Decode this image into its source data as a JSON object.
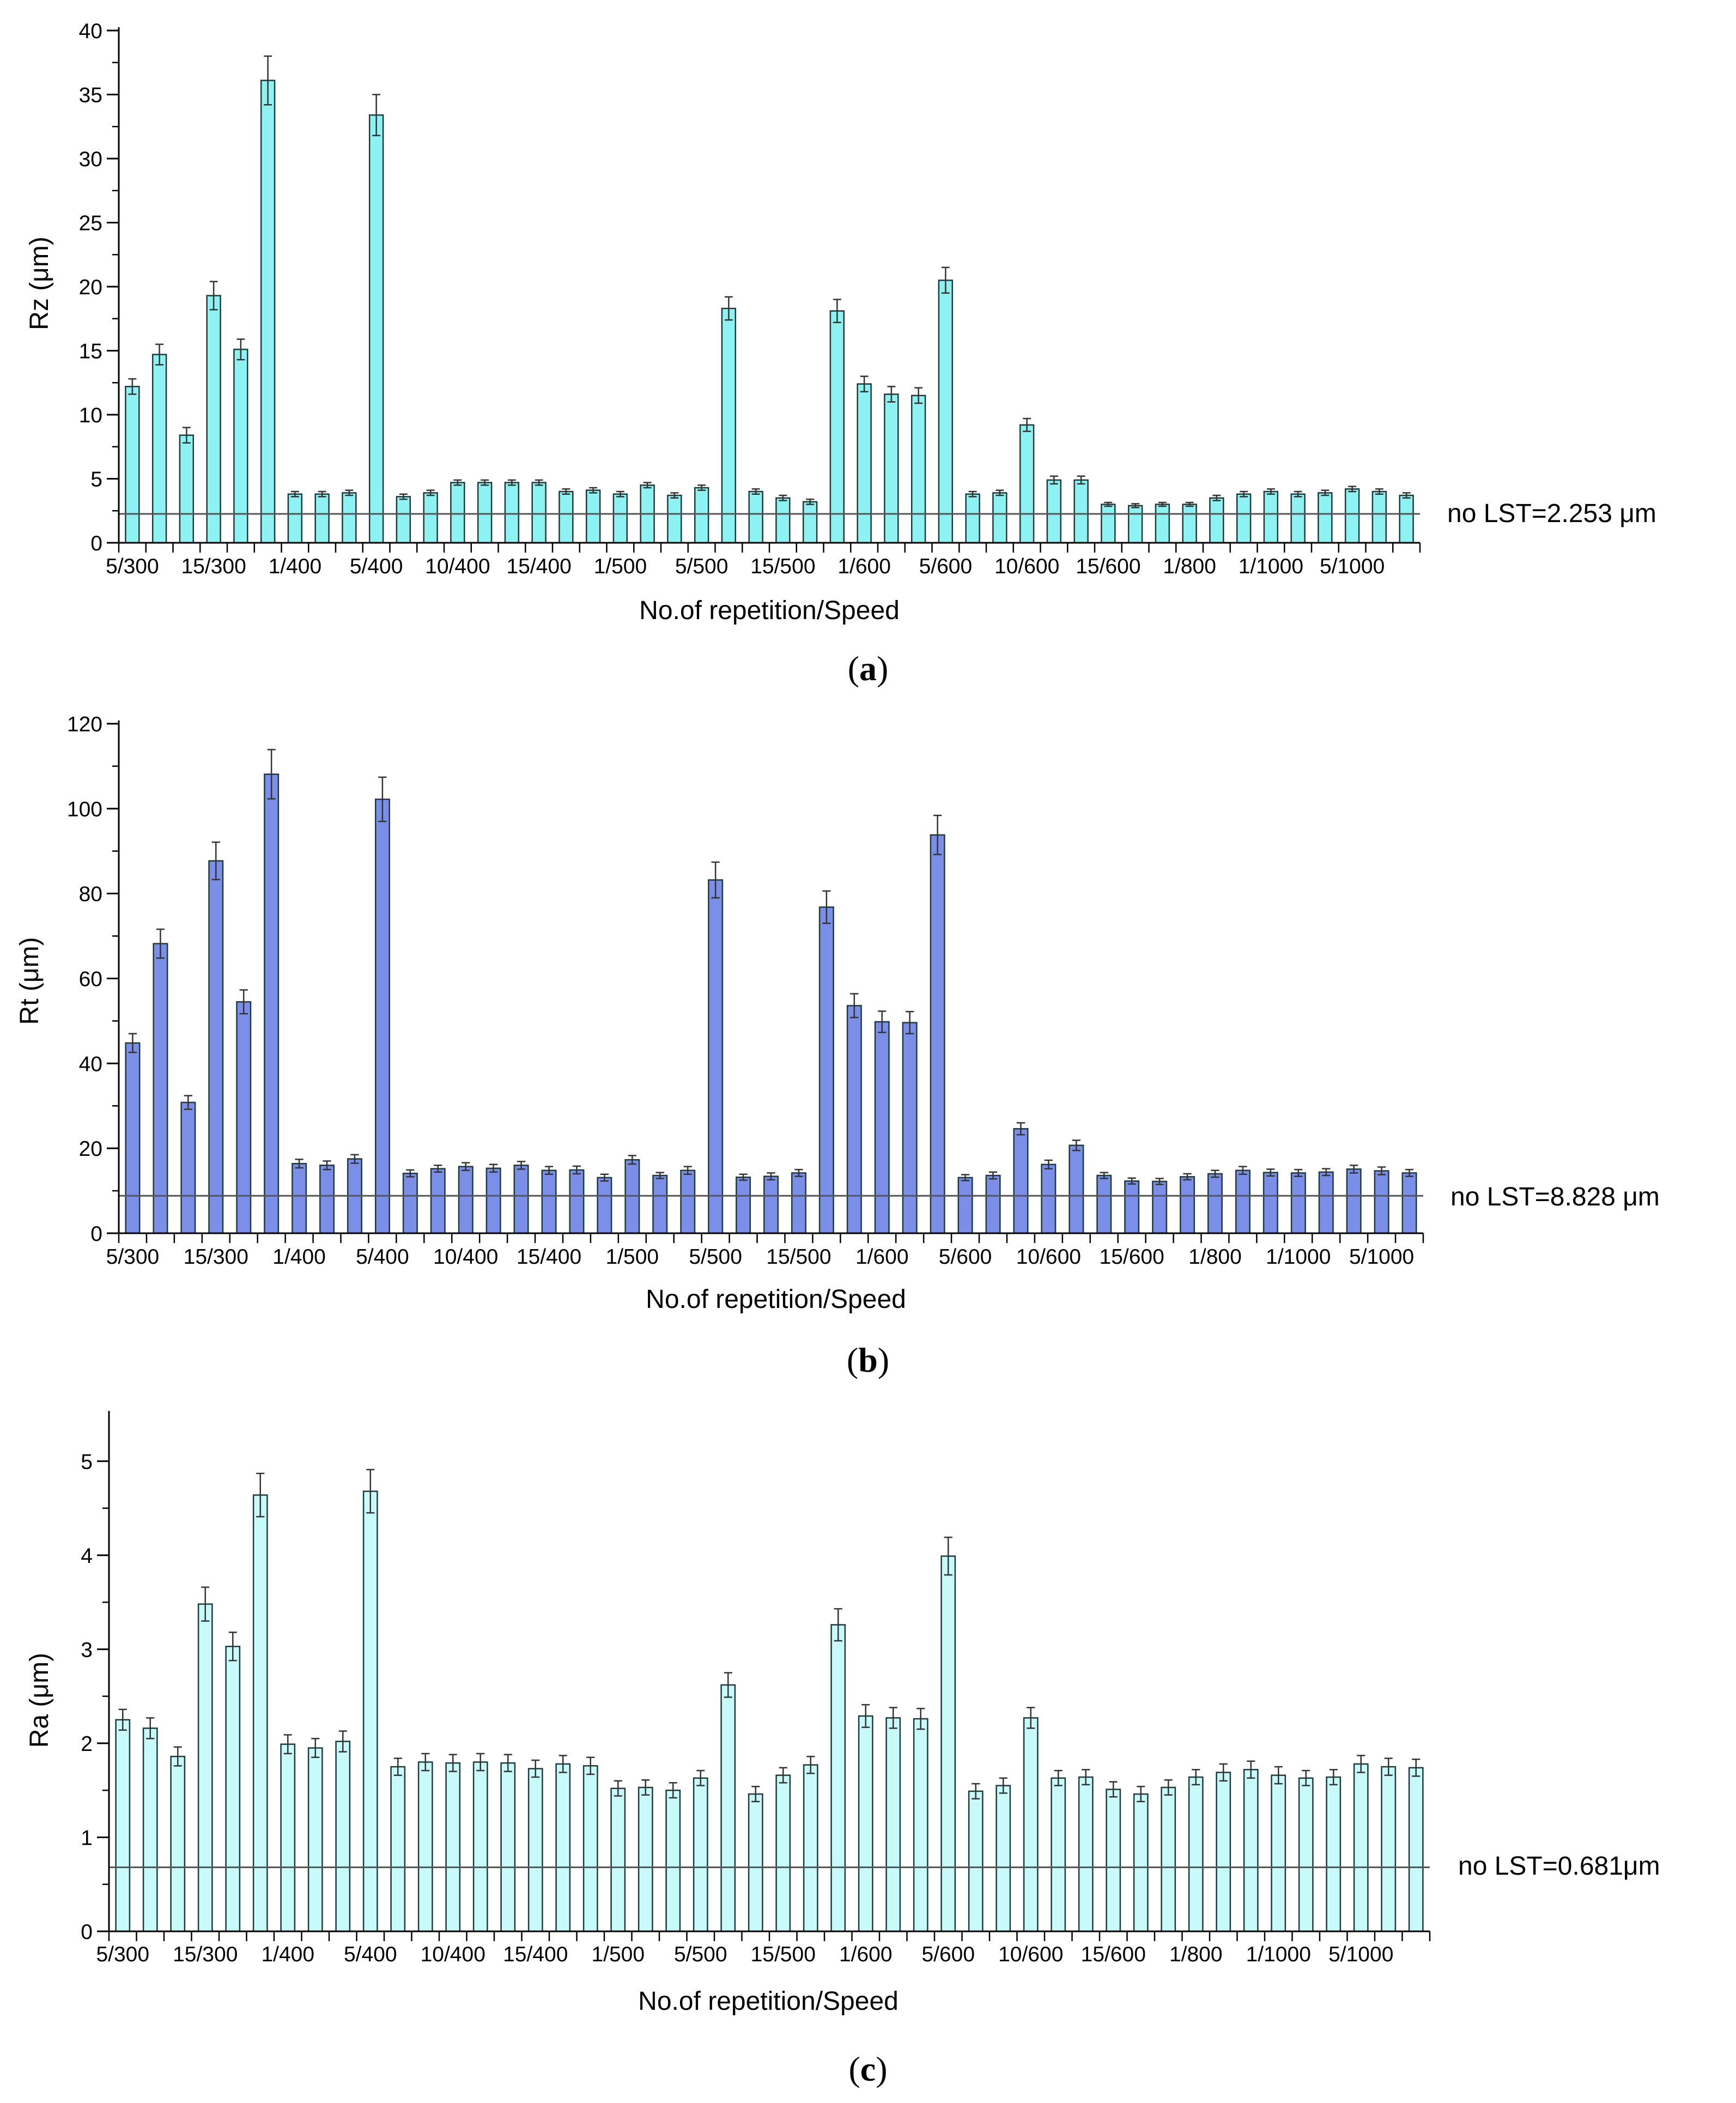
{
  "chart_data": [
    {
      "panel_label": "a",
      "type": "bar",
      "ylabel": "Rz (μm)",
      "xlabel": "No.of repetition/Speed",
      "ylim": [
        0,
        40
      ],
      "yticks": [
        0,
        5,
        10,
        15,
        20,
        25,
        30,
        35,
        40
      ],
      "xtick_labels": [
        "5/300",
        "15/300",
        "1/400",
        "5/400",
        "10/400",
        "15/400",
        "1/500",
        "5/500",
        "15/500",
        "1/600",
        "5/600",
        "10/600",
        "15/600",
        "1/800",
        "1/1000",
        "5/1000"
      ],
      "bar_color": "#8ff2f2",
      "values": [
        12.2,
        14.7,
        8.4,
        19.3,
        15.1,
        36.1,
        3.8,
        3.8,
        3.9,
        33.4,
        3.6,
        3.9,
        4.7,
        4.7,
        4.7,
        4.7,
        4.0,
        4.1,
        3.8,
        4.5,
        3.7,
        4.3,
        18.3,
        4.0,
        3.5,
        3.2,
        18.1,
        12.4,
        11.6,
        11.5,
        20.5,
        3.8,
        3.9,
        9.2,
        4.9,
        4.9,
        3.0,
        2.9,
        3.0,
        3.0,
        3.5,
        3.8,
        4.0,
        3.8,
        3.9,
        4.2,
        4.0,
        3.7
      ],
      "errors": [
        0.6,
        0.8,
        0.6,
        1.1,
        0.8,
        1.9,
        0.2,
        0.2,
        0.2,
        1.6,
        0.2,
        0.2,
        0.2,
        0.2,
        0.2,
        0.2,
        0.2,
        0.2,
        0.2,
        0.2,
        0.2,
        0.2,
        0.9,
        0.2,
        0.2,
        0.2,
        0.9,
        0.6,
        0.6,
        0.6,
        1.0,
        0.2,
        0.2,
        0.5,
        0.3,
        0.3,
        0.15,
        0.15,
        0.15,
        0.15,
        0.2,
        0.2,
        0.2,
        0.2,
        0.2,
        0.2,
        0.2,
        0.2
      ],
      "reference_value": 2.253,
      "reference_label": "no LST=2.253 μm"
    },
    {
      "panel_label": "b",
      "type": "bar",
      "ylabel": "Rt (μm)",
      "xlabel": "No.of repetition/Speed",
      "ylim": [
        0,
        120
      ],
      "yticks": [
        0,
        20,
        40,
        60,
        80,
        100,
        120
      ],
      "xtick_labels": [
        "5/300",
        "15/300",
        "1/400",
        "5/400",
        "10/400",
        "15/400",
        "1/500",
        "5/500",
        "15/500",
        "1/600",
        "5/600",
        "10/600",
        "15/600",
        "1/800",
        "1/1000",
        "5/1000"
      ],
      "bar_color": "#7b8fe8",
      "values": [
        44.8,
        68.2,
        30.8,
        87.7,
        54.5,
        108.1,
        16.4,
        16.0,
        17.5,
        102.2,
        14.1,
        15.2,
        15.7,
        15.3,
        16.0,
        14.8,
        14.9,
        13.1,
        17.3,
        13.6,
        14.8,
        83.2,
        13.2,
        13.4,
        14.2,
        76.8,
        53.6,
        49.8,
        49.6,
        93.8,
        13.1,
        13.6,
        24.6,
        16.2,
        20.7,
        13.6,
        12.3,
        12.2,
        13.3,
        14.0,
        14.8,
        14.3,
        14.2,
        14.4,
        15.1,
        14.7,
        14.2
      ],
      "errors": [
        2.2,
        3.4,
        1.6,
        4.4,
        2.8,
        5.8,
        1.0,
        1.0,
        1.0,
        5.2,
        0.8,
        0.8,
        0.9,
        0.9,
        0.9,
        0.9,
        0.9,
        0.8,
        1.0,
        0.7,
        0.9,
        4.2,
        0.7,
        0.8,
        0.8,
        3.8,
        2.8,
        2.5,
        2.6,
        4.6,
        0.7,
        0.8,
        1.4,
        1.0,
        1.2,
        0.7,
        0.7,
        0.7,
        0.7,
        0.8,
        0.9,
        0.8,
        0.8,
        0.8,
        0.9,
        0.9,
        0.8
      ],
      "reference_value": 8.828,
      "reference_label": "no LST=8.828 μm"
    },
    {
      "panel_label": "c",
      "type": "bar",
      "ylabel": "Ra (μm)",
      "xlabel": "No.of repetition/Speed",
      "ylim": [
        0,
        5.5
      ],
      "yticks": [
        0,
        1,
        2,
        3,
        4,
        5
      ],
      "xtick_labels": [
        "5/300",
        "15/300",
        "1/400",
        "5/400",
        "10/400",
        "15/400",
        "1/500",
        "5/500",
        "15/500",
        "1/600",
        "5/600",
        "10/600",
        "15/600",
        "1/800",
        "1/1000",
        "5/1000"
      ],
      "bar_color": "#c8fafa",
      "values": [
        2.25,
        2.16,
        1.86,
        3.48,
        3.03,
        4.64,
        1.99,
        1.95,
        2.02,
        4.68,
        1.75,
        1.8,
        1.79,
        1.8,
        1.79,
        1.73,
        1.78,
        1.76,
        1.52,
        1.53,
        1.5,
        1.63,
        2.62,
        1.46,
        1.66,
        1.77,
        3.26,
        2.29,
        2.27,
        2.26,
        3.99,
        1.49,
        1.55,
        2.27,
        1.63,
        1.64,
        1.51,
        1.46,
        1.53,
        1.64,
        1.69,
        1.72,
        1.66,
        1.63,
        1.64,
        1.78,
        1.75,
        1.74
      ],
      "errors": [
        0.11,
        0.11,
        0.1,
        0.18,
        0.15,
        0.23,
        0.1,
        0.1,
        0.11,
        0.23,
        0.09,
        0.09,
        0.09,
        0.09,
        0.09,
        0.09,
        0.09,
        0.09,
        0.08,
        0.08,
        0.08,
        0.08,
        0.13,
        0.08,
        0.08,
        0.09,
        0.17,
        0.12,
        0.11,
        0.11,
        0.2,
        0.08,
        0.08,
        0.11,
        0.08,
        0.08,
        0.08,
        0.08,
        0.08,
        0.08,
        0.09,
        0.09,
        0.09,
        0.08,
        0.08,
        0.09,
        0.09,
        0.09
      ],
      "reference_value": 0.681,
      "reference_label": "no LST=0.681μm"
    }
  ]
}
